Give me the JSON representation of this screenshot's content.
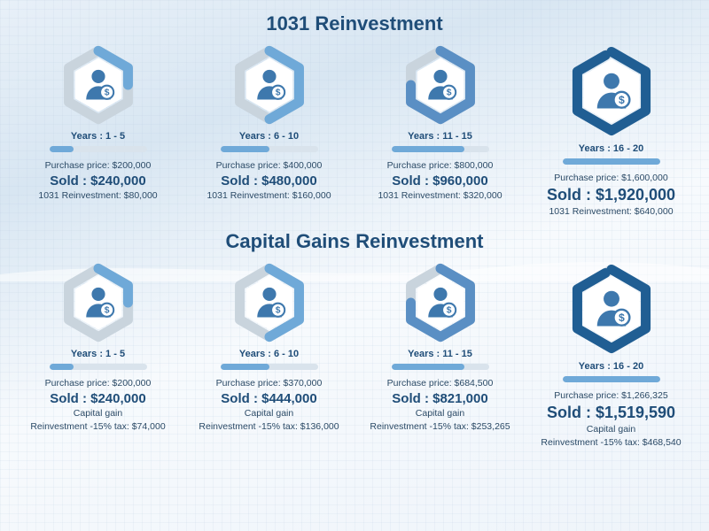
{
  "colors": {
    "title": "#1f4d78",
    "text": "#2b4a66",
    "ring_bg": "#c9d4dd",
    "accent_light": "#6fa9d8",
    "accent_dark": "#205e93",
    "icon": "#3e78ad",
    "bar_bg": "#d9e3ec",
    "bar_fill": "#6fa9d8"
  },
  "sections": [
    {
      "key": "s1031",
      "title": "1031 Reinvestment",
      "cards": [
        {
          "years": "Years : 1 - 5",
          "purchase": "Purchase  price: $200,000",
          "sold": "Sold : $240,000",
          "extra1": "1031 Reinvestment: $80,000",
          "extra2": "",
          "ring_pct": 25,
          "ring_color": "#6fa9d8",
          "bar_pct": 25,
          "big": false
        },
        {
          "years": "Years : 6 - 10",
          "purchase": "Purchase  price: $400,000",
          "sold": "Sold : $480,000",
          "extra1": "1031 Reinvestment: $160,000",
          "extra2": "",
          "ring_pct": 50,
          "ring_color": "#6fa9d8",
          "bar_pct": 50,
          "big": false
        },
        {
          "years": "Years : 11 - 15",
          "purchase": "Purchase  price: $800,000",
          "sold": "Sold : $960,000",
          "extra1": "1031 Reinvestment: $320,000",
          "extra2": "",
          "ring_pct": 75,
          "ring_color": "#5a8fc4",
          "bar_pct": 75,
          "big": false
        },
        {
          "years": "Years : 16 - 20",
          "purchase": "Purchase  price: $1,600,000",
          "sold": "Sold : $1,920,000",
          "extra1": "1031 Reinvestment: $640,000",
          "extra2": "",
          "ring_pct": 97,
          "ring_color": "#205e93",
          "bar_pct": 100,
          "big": true
        }
      ]
    },
    {
      "key": "cg",
      "title": "Capital Gains Reinvestment",
      "cards": [
        {
          "years": "Years : 1 - 5",
          "purchase": "Purchase  price: $200,000",
          "sold": "Sold : $240,000",
          "extra1": "Capital gain",
          "extra2": "Reinvestment -15% tax: $74,000",
          "ring_pct": 25,
          "ring_color": "#6fa9d8",
          "bar_pct": 25,
          "big": false
        },
        {
          "years": "Years : 6 - 10",
          "purchase": "Purchase  price: $370,000",
          "sold": "Sold : $444,000",
          "extra1": "Capital gain",
          "extra2": "Reinvestment -15% tax: $136,000",
          "ring_pct": 50,
          "ring_color": "#6fa9d8",
          "bar_pct": 50,
          "big": false
        },
        {
          "years": "Years : 11 - 15",
          "purchase": "Purchase  price: $684,500",
          "sold": "Sold : $821,000",
          "extra1": "Capital gain",
          "extra2": "Reinvestment -15% tax: $253,265",
          "ring_pct": 75,
          "ring_color": "#5a8fc4",
          "bar_pct": 75,
          "big": false
        },
        {
          "years": "Years : 16 - 20",
          "purchase": "Purchase  price: $1,266,325",
          "sold": "Sold : $1,519,590",
          "extra1": "Capital gain",
          "extra2": "Reinvestment -15% tax: $468,540",
          "ring_pct": 97,
          "ring_color": "#205e93",
          "bar_pct": 100,
          "big": true
        }
      ]
    }
  ],
  "hex_ring": {
    "stroke_width": 11,
    "bg_color": "#c9d4dd"
  }
}
